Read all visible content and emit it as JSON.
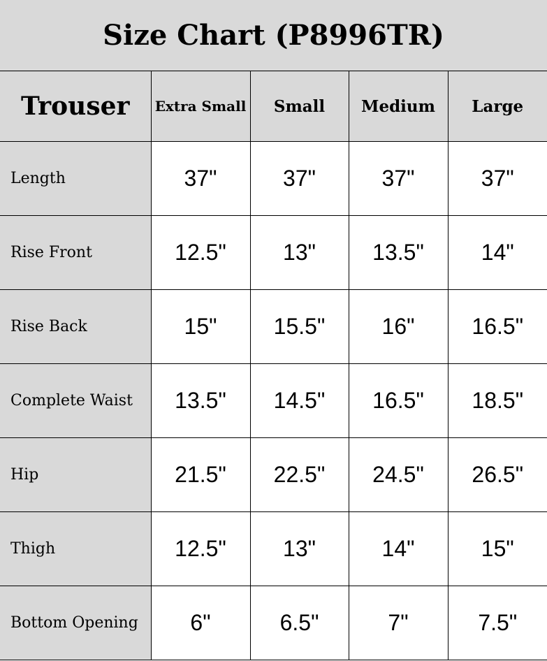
{
  "title": "Size Chart (P8996TR)",
  "header": {
    "corner": "Trouser",
    "sizes": [
      "Extra Small",
      "Small",
      "Medium",
      "Large"
    ]
  },
  "rows": [
    {
      "label": "Length",
      "values": [
        "37\"",
        "37\"",
        "37\"",
        "37\""
      ]
    },
    {
      "label": "Rise Front",
      "values": [
        "12.5\"",
        "13\"",
        "13.5\"",
        "14\""
      ]
    },
    {
      "label": "Rise Back",
      "values": [
        "15\"",
        "15.5\"",
        "16\"",
        "16.5\""
      ]
    },
    {
      "label": "Complete Waist",
      "values": [
        "13.5\"",
        "14.5\"",
        "16.5\"",
        "18.5\""
      ]
    },
    {
      "label": "Hip",
      "values": [
        "21.5\"",
        "22.5\"",
        "24.5\"",
        "26.5\""
      ]
    },
    {
      "label": "Thigh",
      "values": [
        "12.5\"",
        "13\"",
        "14\"",
        "15\""
      ]
    },
    {
      "label": "Bottom Opening",
      "values": [
        "6\"",
        "6.5\"",
        "7\"",
        "7.5\""
      ]
    }
  ],
  "colors": {
    "header_bg": "#d9d9d9",
    "border": "#000000"
  }
}
